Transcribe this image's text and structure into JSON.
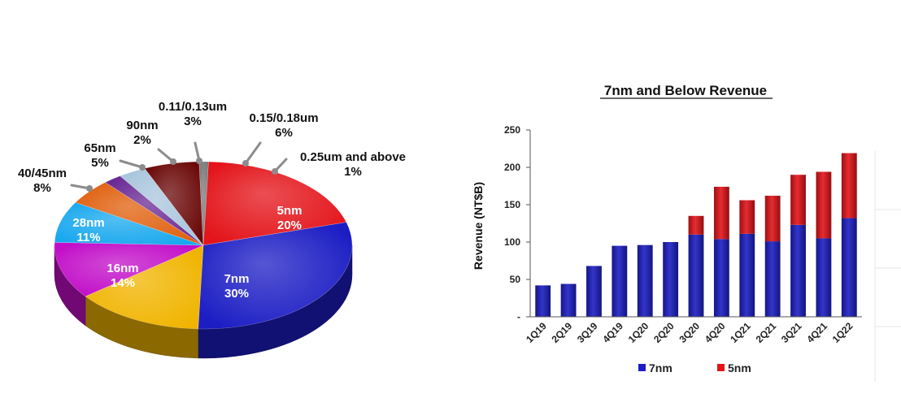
{
  "chart_data": [
    {
      "type": "pie",
      "title": "",
      "slices": [
        {
          "label": "5nm",
          "value": 20,
          "value_label": "20%",
          "color": "#e3141a"
        },
        {
          "label": "7nm",
          "value": 30,
          "value_label": "30%",
          "color": "#1c1ec4"
        },
        {
          "label": "16nm",
          "value": 14,
          "value_label": "14%",
          "color": "#f0b400"
        },
        {
          "label": "28nm",
          "value": 11,
          "value_label": "11%",
          "color": "#c20ec8"
        },
        {
          "label": "40/45nm",
          "value": 8,
          "value_label": "8%",
          "color": "#18a8ee"
        },
        {
          "label": "65nm",
          "value": 5,
          "value_label": "5%",
          "color": "#e0600e"
        },
        {
          "label": "90nm",
          "value": 2,
          "value_label": "2%",
          "color": "#6a2a94"
        },
        {
          "label": "0.11/0.13um",
          "value": 3,
          "value_label": "3%",
          "color": "#a9c5dc"
        },
        {
          "label": "0.15/0.18um",
          "value": 6,
          "value_label": "6%",
          "color": "#6b0808"
        },
        {
          "label": "0.25um and above",
          "value": 1,
          "value_label": "1%",
          "color": "#7a7a7a"
        }
      ]
    },
    {
      "type": "bar",
      "stacked": true,
      "title": "7nm and Below Revenue",
      "xlabel": "",
      "ylabel": "Revenue (NT$B)",
      "ylim": [
        0,
        250
      ],
      "yticks": [
        "-",
        "50",
        "100",
        "150",
        "200",
        "250"
      ],
      "grid": false,
      "legend_position": "bottom",
      "categories": [
        "1Q19",
        "2Q19",
        "3Q19",
        "4Q19",
        "1Q20",
        "2Q20",
        "3Q20",
        "4Q20",
        "1Q21",
        "2Q21",
        "3Q21",
        "4Q21",
        "1Q22"
      ],
      "series": [
        {
          "name": "7nm",
          "color": "#1c1ec4",
          "values": [
            42,
            44,
            68,
            95,
            96,
            100,
            110,
            104,
            111,
            101,
            123,
            105,
            132
          ]
        },
        {
          "name": "5nm",
          "color": "#e3141a",
          "values": [
            0,
            0,
            0,
            0,
            0,
            0,
            25,
            70,
            45,
            61,
            67,
            89,
            87
          ]
        }
      ]
    }
  ]
}
